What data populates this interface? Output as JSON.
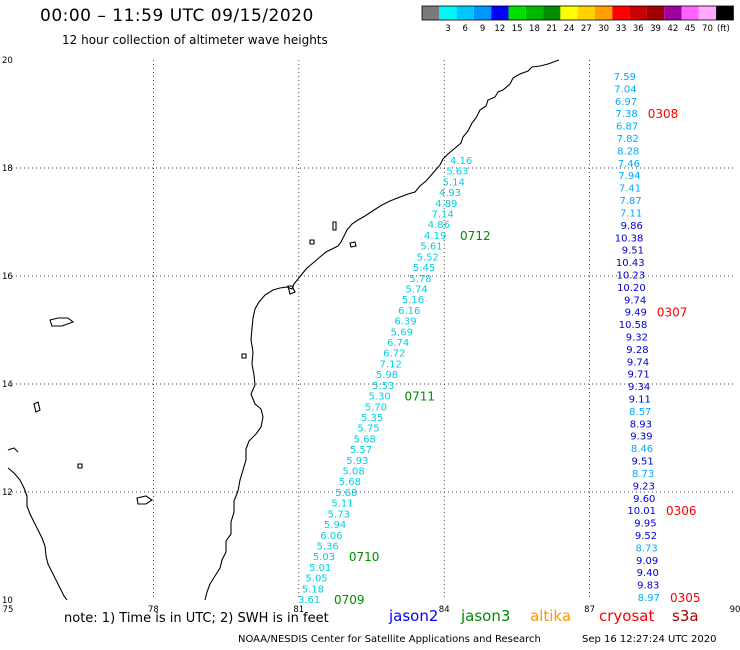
{
  "header": {
    "title": "00:00 – 11:59 UTC 09/15/2020",
    "subtitle": "12 hour collection of altimeter wave heights"
  },
  "colorbar": {
    "unit": "(ft)",
    "bins": [
      {
        "color": "#7a7a7a",
        "label": ""
      },
      {
        "color": "#00f5f5",
        "label": "3"
      },
      {
        "color": "#00c8ff",
        "label": "6"
      },
      {
        "color": "#0096ff",
        "label": "9"
      },
      {
        "color": "#0000ff",
        "label": "12"
      },
      {
        "color": "#00e000",
        "label": "15"
      },
      {
        "color": "#00b800",
        "label": "18"
      },
      {
        "color": "#008c00",
        "label": "21"
      },
      {
        "color": "#ffff00",
        "label": "24"
      },
      {
        "color": "#ffd200",
        "label": "27"
      },
      {
        "color": "#ffa000",
        "label": "30"
      },
      {
        "color": "#ff0000",
        "label": "33"
      },
      {
        "color": "#c80000",
        "label": "36"
      },
      {
        "color": "#a00000",
        "label": "39"
      },
      {
        "color": "#a000a0",
        "label": "42"
      },
      {
        "color": "#ff64ff",
        "label": "45"
      },
      {
        "color": "#ffaaff",
        "label": "70"
      },
      {
        "color": "#000000",
        "label": ""
      }
    ]
  },
  "map": {
    "lon_ticks": [
      "75",
      "78",
      "81",
      "84",
      "87",
      "90"
    ],
    "lat_ticks": [
      "20",
      "18",
      "16",
      "14",
      "12",
      "10"
    ],
    "lon_range": [
      75,
      90
    ],
    "lat_range": [
      10,
      20
    ]
  },
  "tracks": [
    {
      "satellite": "jason3",
      "value_color": "#00d0e0",
      "values": [
        "4.16",
        "5.63",
        "5.14",
        "4.93",
        "4.89",
        "7.14",
        "4.86",
        "4.19",
        "5.61",
        "5.52",
        "5.45",
        "5.78",
        "5.74",
        "5.16",
        "6.16",
        "6.39",
        "5.69",
        "6.74",
        "6.72",
        "7.12",
        "5.98",
        "5.53",
        "5.30",
        "5.70",
        "5.35",
        "5.75",
        "5.68",
        "5.57",
        "5.93",
        "5.08",
        "5.68",
        "5.68",
        "5.11",
        "5.73",
        "5.94",
        "6.06",
        "5.36",
        "5.03",
        "5.01",
        "5.05",
        "5.18",
        "3.61"
      ],
      "pass_labels": [
        {
          "text": "0712",
          "color": "#008c00",
          "after_index": 7
        },
        {
          "text": "0711",
          "color": "#008c00",
          "after_index": 22
        },
        {
          "text": "0710",
          "color": "#008c00",
          "after_index": 37
        },
        {
          "text": "0709",
          "color": "#008c00",
          "after_index": 41
        }
      ]
    },
    {
      "satellite": "cryosat",
      "values": [
        {
          "v": "7.59",
          "c": "#00aaff"
        },
        {
          "v": "7.04",
          "c": "#00aaff"
        },
        {
          "v": "6.97",
          "c": "#00aaff"
        },
        {
          "v": "7.38",
          "c": "#00aaff"
        },
        {
          "v": "6.87",
          "c": "#00aaff"
        },
        {
          "v": "7.82",
          "c": "#00aaff"
        },
        {
          "v": "8.28",
          "c": "#00aaff"
        },
        {
          "v": "7.46",
          "c": "#00aaff"
        },
        {
          "v": "7.94",
          "c": "#00aaff"
        },
        {
          "v": "7.41",
          "c": "#00aaff"
        },
        {
          "v": "7.87",
          "c": "#00aaff"
        },
        {
          "v": "7.11",
          "c": "#00aaff"
        },
        {
          "v": "9.86",
          "c": "#0000d0"
        },
        {
          "v": "10.38",
          "c": "#0000d0"
        },
        {
          "v": "9.51",
          "c": "#0000d0"
        },
        {
          "v": "10.43",
          "c": "#0000d0"
        },
        {
          "v": "10.23",
          "c": "#0000d0"
        },
        {
          "v": "10.20",
          "c": "#0000d0"
        },
        {
          "v": "9.74",
          "c": "#0000d0"
        },
        {
          "v": "9.49",
          "c": "#0000d0"
        },
        {
          "v": "10.58",
          "c": "#0000d0"
        },
        {
          "v": "9.32",
          "c": "#0000d0"
        },
        {
          "v": "9.28",
          "c": "#0000d0"
        },
        {
          "v": "9.74",
          "c": "#0000d0"
        },
        {
          "v": "9.71",
          "c": "#0000d0"
        },
        {
          "v": "9.34",
          "c": "#0000d0"
        },
        {
          "v": "9.11",
          "c": "#0000d0"
        },
        {
          "v": "8.57",
          "c": "#00aaff"
        },
        {
          "v": "8.93",
          "c": "#0000d0"
        },
        {
          "v": "9.39",
          "c": "#0000d0"
        },
        {
          "v": "8.46",
          "c": "#00aaff"
        },
        {
          "v": "9.51",
          "c": "#0000d0"
        },
        {
          "v": "8.73",
          "c": "#00aaff"
        },
        {
          "v": "9.23",
          "c": "#0000d0"
        },
        {
          "v": "9.60",
          "c": "#0000d0"
        },
        {
          "v": "10.01",
          "c": "#0000d0"
        },
        {
          "v": "9.95",
          "c": "#0000d0"
        },
        {
          "v": "9.52",
          "c": "#0000d0"
        },
        {
          "v": "8.73",
          "c": "#00aaff"
        },
        {
          "v": "9.09",
          "c": "#0000d0"
        },
        {
          "v": "9.40",
          "c": "#0000d0"
        },
        {
          "v": "9.83",
          "c": "#0000d0"
        },
        {
          "v": "8.97",
          "c": "#00aaff"
        }
      ],
      "pass_labels": [
        {
          "text": "0308",
          "color": "#ff0000",
          "at_index": 3
        },
        {
          "text": "0307",
          "color": "#ff0000",
          "at_index": 19
        },
        {
          "text": "0306",
          "color": "#ff0000",
          "at_index": 35
        },
        {
          "text": "0305",
          "color": "#ff0000",
          "at_index": 42
        }
      ]
    }
  ],
  "footer": {
    "note": "note: 1) Time is in UTC; 2) SWH is in feet",
    "satellites": [
      {
        "name": "jason2",
        "color": "#0000ff"
      },
      {
        "name": "jason3",
        "color": "#008c00"
      },
      {
        "name": "altika",
        "color": "#ff9900"
      },
      {
        "name": "cryosat",
        "color": "#ff0000"
      },
      {
        "name": "s3a",
        "color": "#b00000"
      }
    ],
    "credit": "NOAA/NESDIS Center for Satellite Applications and Research",
    "timestamp": "Sep 16 12:27:24 UTC 2020"
  }
}
